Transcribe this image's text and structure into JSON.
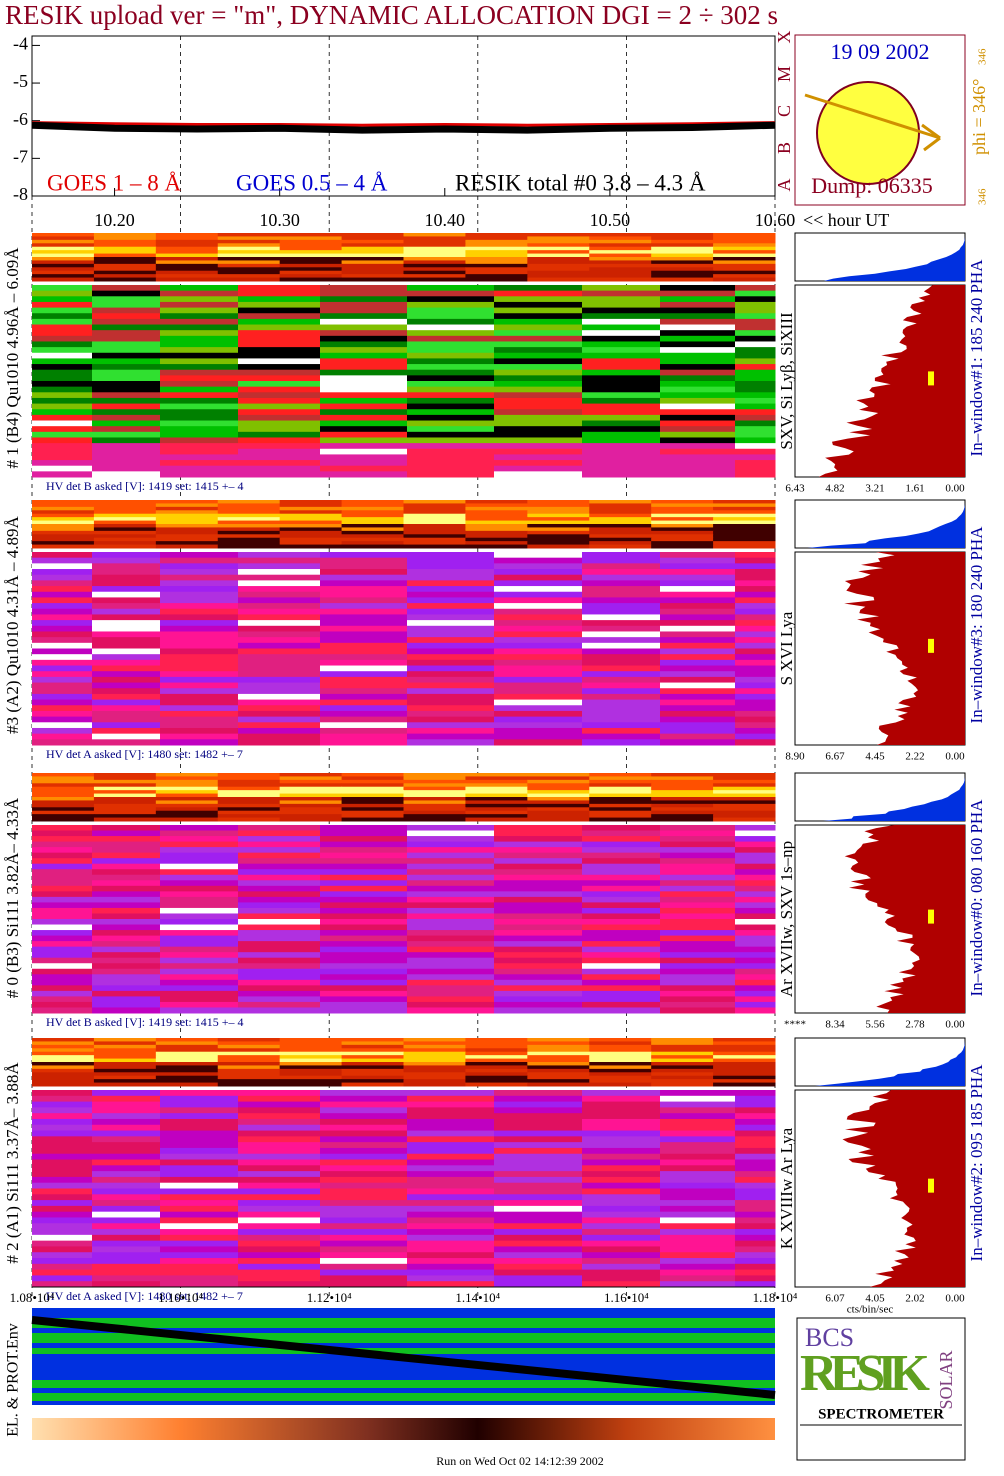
{
  "chart_data": {
    "type": "line",
    "title": "RESIK upload ver = \"m\", DYNAMIC ALLOCATION  DGI =   2 ÷ 302 s",
    "x": [
      10.15,
      10.2,
      10.25,
      10.3,
      10.35,
      10.4,
      10.45,
      10.5,
      10.55,
      10.6
    ],
    "series": [
      {
        "name": "GOES 1 – 8 Å",
        "color": "#e00000",
        "values": [
          -6.05,
          -6.08,
          -6.1,
          -6.1,
          -6.12,
          -6.1,
          -6.12,
          -6.1,
          -6.08,
          -6.05
        ]
      },
      {
        "name": "GOES 0.5 – 4 Å",
        "color": "#0000d0",
        "values": [
          null,
          null,
          null,
          null,
          null,
          null,
          null,
          null,
          null,
          null
        ]
      },
      {
        "name": "RESIK total #0  3.8 – 4.3 Å",
        "color": "#000000",
        "values": [
          -6.12,
          -6.2,
          -6.22,
          -6.2,
          -6.25,
          -6.22,
          -6.25,
          -6.2,
          -6.18,
          -6.12
        ]
      }
    ],
    "xlim": [
      10.15,
      10.6
    ],
    "xticks": [
      {
        "value": 10.2,
        "label": "10.20"
      },
      {
        "value": 10.3,
        "label": "10.30"
      },
      {
        "value": 10.4,
        "label": "10.40"
      },
      {
        "value": 10.5,
        "label": "10.50"
      },
      {
        "value": 10.6,
        "label": "10.60"
      }
    ],
    "x_label": "<< hour UT",
    "ylim": [
      -8,
      -3.75
    ],
    "yticks": [
      -4,
      -5,
      -6,
      -7,
      -8
    ]
  },
  "sun": {
    "date": "19 09 2002",
    "phi": "phi = 346°",
    "phi_sub": "346",
    "phi_bottom": "346",
    "dump": "Dump: 06335",
    "classes": [
      "A",
      "B",
      "C",
      "M",
      "X"
    ]
  },
  "panels": [
    {
      "label": "# 1 (B4) Qu1010 4.96Å – 6.09Å",
      "line": "SXV, Si Lyβ, SiXIII",
      "window": "In–window#1:  185 240 PHA",
      "hv": "HV det B asked [V]:  1419 set:  1415 +–    4",
      "scale": [
        "6.43",
        "4.82",
        "3.21",
        "1.61",
        "0.00"
      ]
    },
    {
      "label": "#3 (A2) Qu1010  4.31Å – 4.89Å",
      "line": "S XVI Lya",
      "window": "In–window#3:  180 240 PHA",
      "hv": "HV det A asked [V]:  1480 set:  1482 +–    7",
      "scale": [
        "8.90",
        "6.67",
        "4.45",
        "2.22",
        "0.00"
      ]
    },
    {
      "label": "# 0 (B3) Si111  3.82Å– 4.33Å",
      "line": "Ar XVIIw,  SXV 1s–np",
      "window": "In–window#0:  080 160 PHA",
      "hv": "HV det B asked [V]:  1419 set:  1415 +–    4",
      "scale": [
        "****",
        "8.34",
        "5.56",
        "2.78",
        "0.00"
      ]
    },
    {
      "label": "# 2 (A1) Si111  3.37Å– 3.88Å",
      "line": "K XVIIIw  Ar Lya",
      "window": "In–window#2:  095 185 PHA",
      "hv": "HV det A asked [V]:  1480 set:  1482 +–    7",
      "scale": [
        "6.07",
        "4.05",
        "2.02",
        "0.00"
      ]
    }
  ],
  "time_axis": {
    "ticks": [
      "1.08•10⁴",
      "1.10•10⁴",
      "1.12•10⁴",
      "1.14•10⁴",
      "1.16•10⁴",
      "1.18•10⁴"
    ]
  },
  "hist_unit": "cts/bin/sec",
  "env_label": "EL. & PROT.Env",
  "logo": {
    "top": "BCS",
    "main": "RESIK",
    "side": "SOLAR",
    "bottom": "SPECTROMETER"
  },
  "footer": "Run on Wed Oct 02 14:12:39 2002"
}
